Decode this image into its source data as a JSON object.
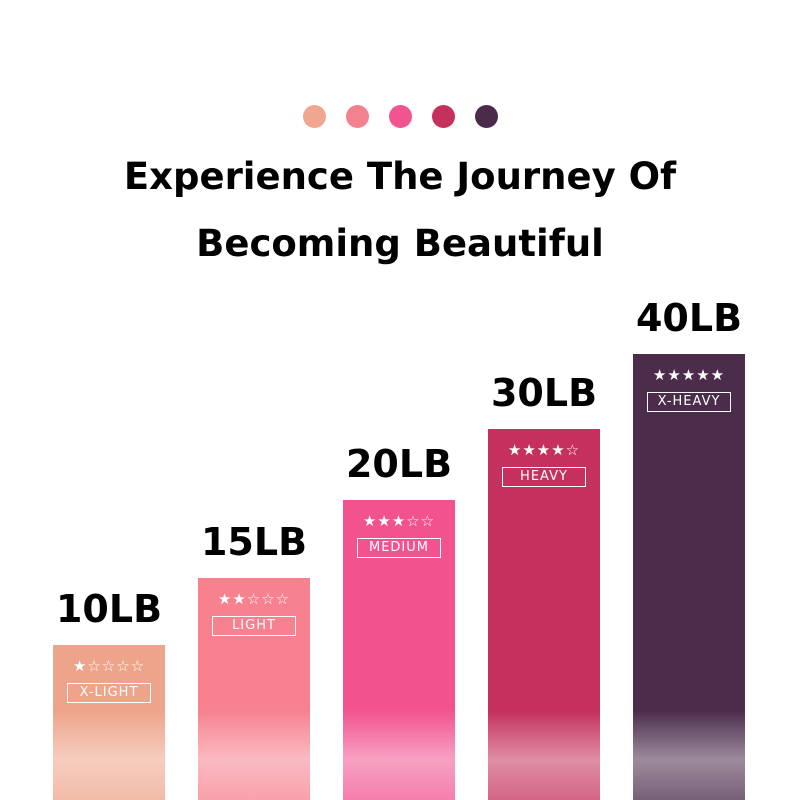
{
  "header": {
    "line1": "Experience The Journey Of",
    "line2": "Becoming Beautiful",
    "dot_colors": [
      "#f0a78f",
      "#f3828f",
      "#f2548f",
      "#c6305d",
      "#4a2c4a"
    ]
  },
  "bands": [
    {
      "weight": "10LB",
      "stars": "★☆☆☆☆",
      "rating": 1,
      "level": "X-LIGHT",
      "color": "#eea48a"
    },
    {
      "weight": "15LB",
      "stars": "★★☆☆☆",
      "rating": 2,
      "level": "LIGHT",
      "color": "#f7818f"
    },
    {
      "weight": "20LB",
      "stars": "★★★☆☆",
      "rating": 3,
      "level": "MEDIUM",
      "color": "#f2538f"
    },
    {
      "weight": "30LB",
      "stars": "★★★★☆",
      "rating": 4,
      "level": "HEAVY",
      "color": "#c5305c"
    },
    {
      "weight": "40LB",
      "stars": "★★★★★",
      "rating": 5,
      "level": "X-HEAVY",
      "color": "#4b2c4b"
    }
  ]
}
